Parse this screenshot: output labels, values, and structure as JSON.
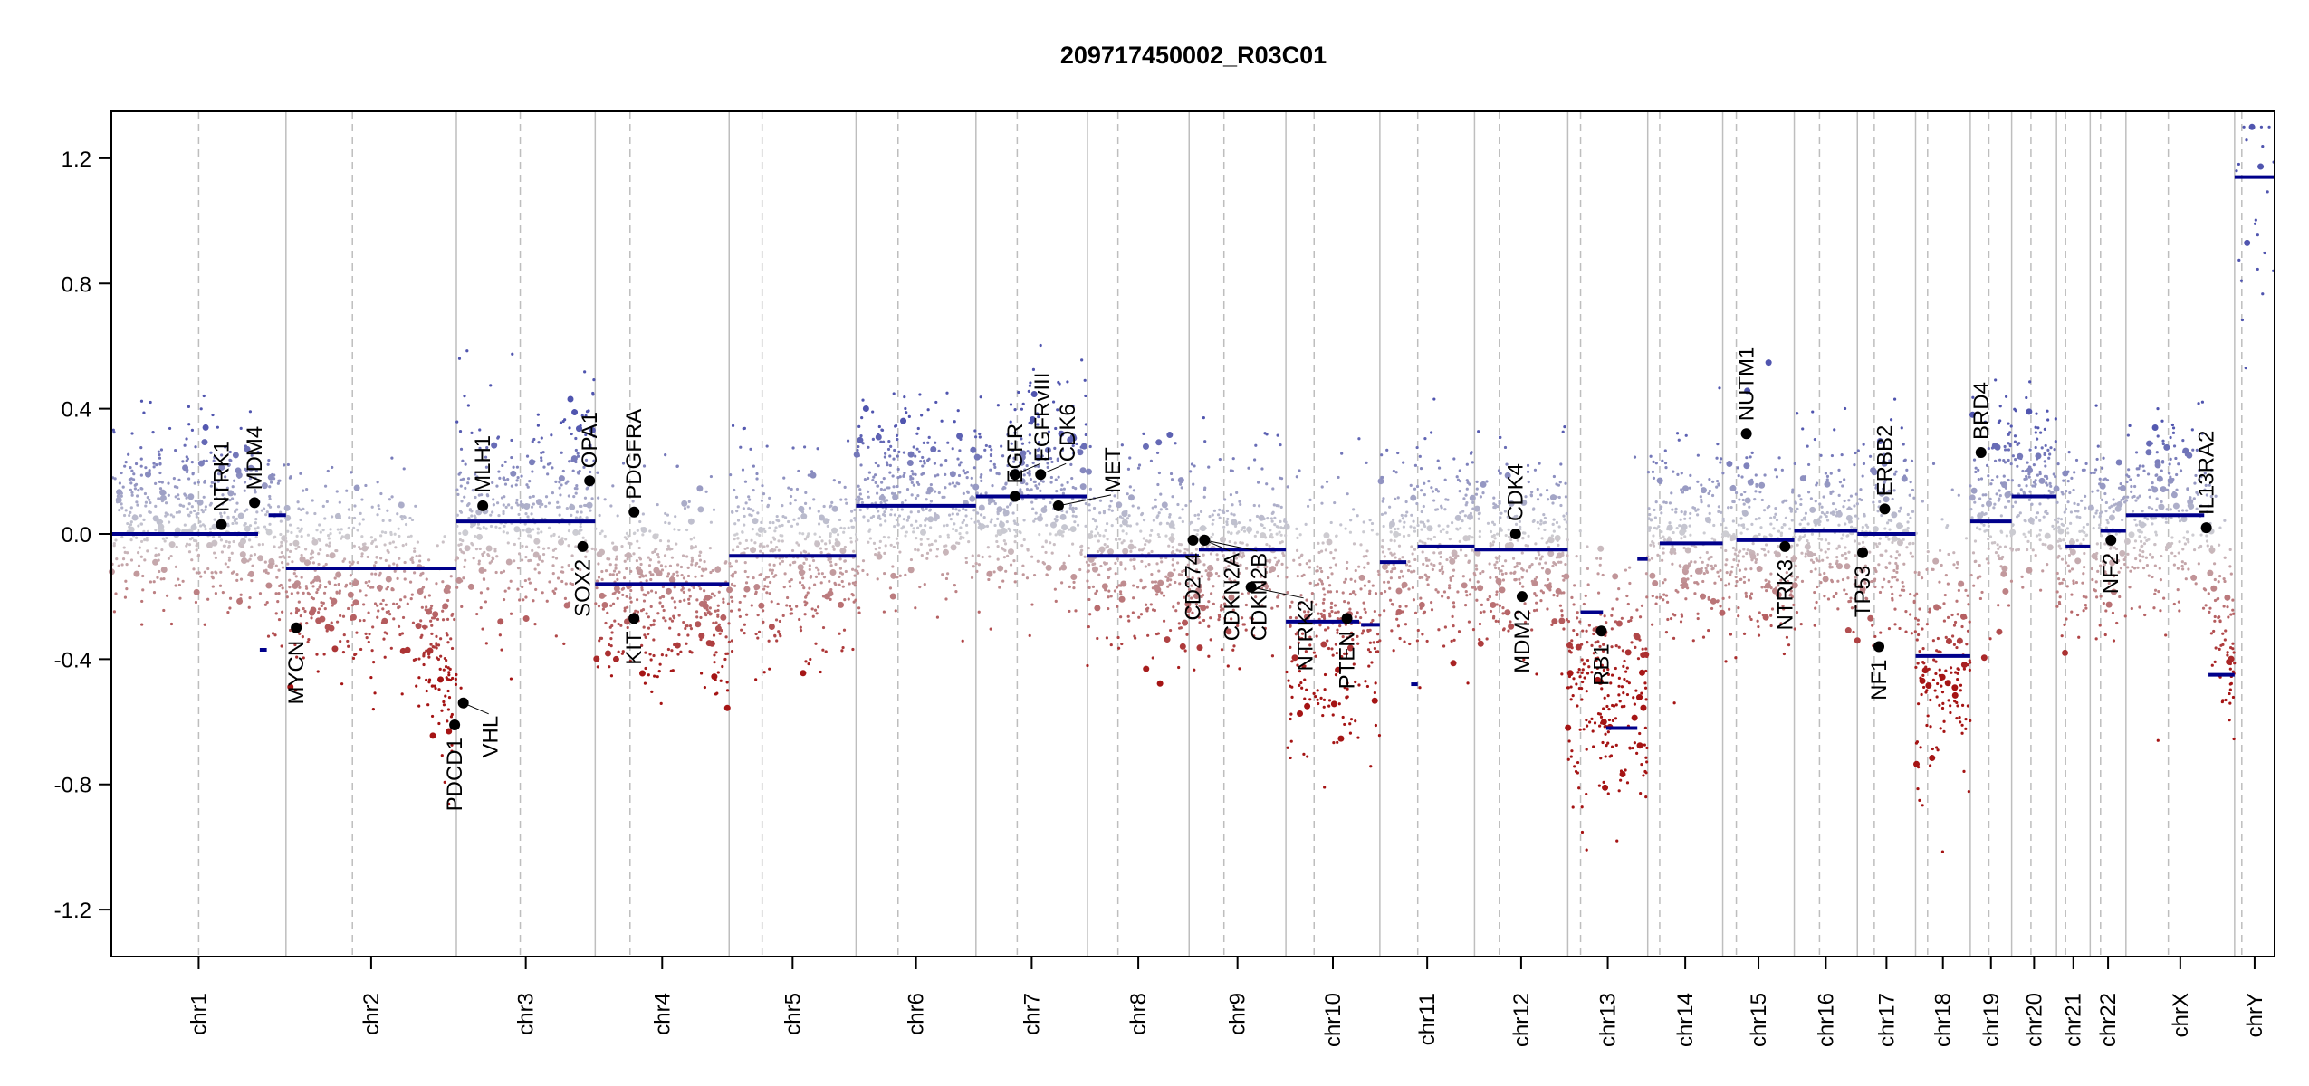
{
  "chart_data": {
    "type": "scatter",
    "title": "209717450002_R03C01",
    "xlabel": "",
    "ylabel": "",
    "ylim": [
      -1.35,
      1.35
    ],
    "yticks": [
      -1.2,
      -0.8,
      -0.4,
      0.0,
      0.4,
      0.8,
      1.2
    ],
    "ytick_labels": [
      "-1.2",
      "-0.8",
      "-0.4",
      "0.0",
      "0.4",
      "0.8",
      "1.2"
    ],
    "grid": false,
    "colors": {
      "segment": "#00008B",
      "gain": "#5A5FB0",
      "neutral": "#C8C8C8",
      "loss": "#A01010",
      "gene": "#000000",
      "separator": "#BEBEBE"
    },
    "chromosomes": [
      {
        "name": "chr1",
        "length": 249,
        "centromere": 0.5
      },
      {
        "name": "chr2",
        "length": 243,
        "centromere": 0.39
      },
      {
        "name": "chr3",
        "length": 198,
        "centromere": 0.46
      },
      {
        "name": "chr4",
        "length": 191,
        "centromere": 0.26
      },
      {
        "name": "chr5",
        "length": 181,
        "centromere": 0.26
      },
      {
        "name": "chr6",
        "length": 171,
        "centromere": 0.35
      },
      {
        "name": "chr7",
        "length": 159,
        "centromere": 0.37
      },
      {
        "name": "chr8",
        "length": 145,
        "centromere": 0.3
      },
      {
        "name": "chr9",
        "length": 138,
        "centromere": 0.36
      },
      {
        "name": "chr10",
        "length": 134,
        "centromere": 0.3
      },
      {
        "name": "chr11",
        "length": 135,
        "centromere": 0.4
      },
      {
        "name": "chr12",
        "length": 133,
        "centromere": 0.27
      },
      {
        "name": "chr13",
        "length": 114,
        "centromere": 0.16
      },
      {
        "name": "chr14",
        "length": 107,
        "centromere": 0.16
      },
      {
        "name": "chr15",
        "length": 102,
        "centromere": 0.19
      },
      {
        "name": "chr16",
        "length": 90,
        "centromere": 0.4
      },
      {
        "name": "chr17",
        "length": 83,
        "centromere": 0.29
      },
      {
        "name": "chr18",
        "length": 78,
        "centromere": 0.22
      },
      {
        "name": "chr19",
        "length": 59,
        "centromere": 0.45
      },
      {
        "name": "chr20",
        "length": 64,
        "centromere": 0.43
      },
      {
        "name": "chr21",
        "length": 48,
        "centromere": 0.27
      },
      {
        "name": "chr22",
        "length": 51,
        "centromere": 0.29
      },
      {
        "name": "chrX",
        "length": 155,
        "centromere": 0.39
      },
      {
        "name": "chrY",
        "length": 57,
        "centromere": 0.18
      }
    ],
    "segments": [
      {
        "chr": "chr1",
        "start": 0.0,
        "end": 0.84,
        "value": 0.0
      },
      {
        "chr": "chr1",
        "start": 0.9,
        "end": 1.0,
        "value": 0.06
      },
      {
        "chr": "chr1",
        "start": 0.85,
        "end": 0.89,
        "value": -0.37
      },
      {
        "chr": "chr2",
        "start": 0.0,
        "end": 1.0,
        "value": -0.11
      },
      {
        "chr": "chr3",
        "start": 0.0,
        "end": 1.0,
        "value": 0.04
      },
      {
        "chr": "chr4",
        "start": 0.0,
        "end": 1.0,
        "value": -0.16
      },
      {
        "chr": "chr5",
        "start": 0.0,
        "end": 1.0,
        "value": -0.07
      },
      {
        "chr": "chr6",
        "start": 0.0,
        "end": 1.0,
        "value": 0.09
      },
      {
        "chr": "chr7",
        "start": 0.0,
        "end": 1.0,
        "value": 0.12
      },
      {
        "chr": "chr8",
        "start": 0.0,
        "end": 1.0,
        "value": -0.07
      },
      {
        "chr": "chr9",
        "start": 0.0,
        "end": 0.1,
        "value": -0.07
      },
      {
        "chr": "chr9",
        "start": 0.1,
        "end": 1.0,
        "value": -0.05
      },
      {
        "chr": "chr10",
        "start": 0.0,
        "end": 0.78,
        "value": -0.28
      },
      {
        "chr": "chr10",
        "start": 0.8,
        "end": 1.0,
        "value": -0.29
      },
      {
        "chr": "chr11",
        "start": 0.0,
        "end": 0.28,
        "value": -0.09
      },
      {
        "chr": "chr11",
        "start": 0.33,
        "end": 0.4,
        "value": -0.48
      },
      {
        "chr": "chr11",
        "start": 0.4,
        "end": 1.0,
        "value": -0.04
      },
      {
        "chr": "chr12",
        "start": 0.0,
        "end": 1.0,
        "value": -0.05
      },
      {
        "chr": "chr13",
        "start": 0.16,
        "end": 0.44,
        "value": -0.25
      },
      {
        "chr": "chr13",
        "start": 0.48,
        "end": 0.87,
        "value": -0.62
      },
      {
        "chr": "chr13",
        "start": 0.87,
        "end": 1.0,
        "value": -0.08
      },
      {
        "chr": "chr14",
        "start": 0.16,
        "end": 1.0,
        "value": -0.03
      },
      {
        "chr": "chr15",
        "start": 0.19,
        "end": 1.0,
        "value": -0.02
      },
      {
        "chr": "chr16",
        "start": 0.0,
        "end": 1.0,
        "value": 0.01
      },
      {
        "chr": "chr17",
        "start": 0.0,
        "end": 1.0,
        "value": 0.0
      },
      {
        "chr": "chr18",
        "start": 0.0,
        "end": 1.0,
        "value": -0.39
      },
      {
        "chr": "chr19",
        "start": 0.0,
        "end": 1.0,
        "value": 0.04
      },
      {
        "chr": "chr20",
        "start": 0.0,
        "end": 1.0,
        "value": 0.12
      },
      {
        "chr": "chr21",
        "start": 0.27,
        "end": 1.0,
        "value": -0.04
      },
      {
        "chr": "chr22",
        "start": 0.29,
        "end": 1.0,
        "value": 0.01
      },
      {
        "chr": "chrX",
        "start": 0.0,
        "end": 0.72,
        "value": 0.06
      },
      {
        "chr": "chrX",
        "start": 0.76,
        "end": 1.0,
        "value": -0.45
      },
      {
        "chr": "chrY",
        "start": 0.0,
        "end": 1.0,
        "value": 1.14
      }
    ],
    "profile": [
      {
        "chr": "chr1",
        "mean": 0.05,
        "sd": 0.14,
        "tail": -0.1
      },
      {
        "chr": "chr2",
        "mean": -0.12,
        "sd": 0.16,
        "tail": -0.35
      },
      {
        "chr": "chr3",
        "mean": 0.04,
        "sd": 0.16,
        "tail": 0.1
      },
      {
        "chr": "chr4",
        "mean": -0.16,
        "sd": 0.15,
        "tail": -0.15
      },
      {
        "chr": "chr5",
        "mean": -0.07,
        "sd": 0.14,
        "tail": 0.0
      },
      {
        "chr": "chr6",
        "mean": 0.09,
        "sd": 0.15,
        "tail": 0.05
      },
      {
        "chr": "chr7",
        "mean": 0.12,
        "sd": 0.16,
        "tail": 0.0
      },
      {
        "chr": "chr8",
        "mean": -0.07,
        "sd": 0.14,
        "tail": 0.0
      },
      {
        "chr": "chr9",
        "mean": -0.05,
        "sd": 0.15,
        "tail": 0.0
      },
      {
        "chr": "chr10",
        "mean": -0.28,
        "sd": 0.2,
        "tail": 0.0
      },
      {
        "chr": "chr11",
        "mean": -0.04,
        "sd": 0.15,
        "tail": 0.0
      },
      {
        "chr": "chr12",
        "mean": -0.05,
        "sd": 0.15,
        "tail": 0.0
      },
      {
        "chr": "chr13",
        "mean": -0.45,
        "sd": 0.2,
        "tail": -0.15
      },
      {
        "chr": "chr14",
        "mean": -0.03,
        "sd": 0.15,
        "tail": 0.0
      },
      {
        "chr": "chr15",
        "mean": -0.02,
        "sd": 0.15,
        "tail": 0.0
      },
      {
        "chr": "chr16",
        "mean": 0.01,
        "sd": 0.14,
        "tail": 0.0
      },
      {
        "chr": "chr17",
        "mean": 0.0,
        "sd": 0.15,
        "tail": 0.0
      },
      {
        "chr": "chr18",
        "mean": -0.39,
        "sd": 0.22,
        "tail": 0.0
      },
      {
        "chr": "chr19",
        "mean": 0.04,
        "sd": 0.16,
        "tail": 0.1
      },
      {
        "chr": "chr20",
        "mean": 0.12,
        "sd": 0.14,
        "tail": 0.0
      },
      {
        "chr": "chr21",
        "mean": -0.04,
        "sd": 0.14,
        "tail": 0.0
      },
      {
        "chr": "chr22",
        "mean": 0.01,
        "sd": 0.15,
        "tail": 0.0
      },
      {
        "chr": "chrX",
        "mean": 0.06,
        "sd": 0.15,
        "tail": -0.5
      },
      {
        "chr": "chrY",
        "mean": 1.14,
        "sd": 0.3,
        "tail": 0.0
      }
    ],
    "genes": [
      {
        "name": "NTRK1",
        "chr": "chr1",
        "pos": 0.63,
        "value": 0.03,
        "label_side": "up"
      },
      {
        "name": "MDM4",
        "chr": "chr1",
        "pos": 0.82,
        "value": 0.1,
        "label_side": "up"
      },
      {
        "name": "MYCN",
        "chr": "chr2",
        "pos": 0.06,
        "value": -0.3,
        "label_side": "down"
      },
      {
        "name": "PDCD1",
        "chr": "chr2",
        "pos": 0.99,
        "value": -0.61,
        "label_side": "down"
      },
      {
        "name": "VHL",
        "chr": "chr3",
        "pos": 0.05,
        "value": -0.54,
        "label_side": "down"
      },
      {
        "name": "MLH1",
        "chr": "chr3",
        "pos": 0.19,
        "value": 0.09,
        "label_side": "up"
      },
      {
        "name": "SOX2",
        "chr": "chr3",
        "pos": 0.91,
        "value": -0.04,
        "label_side": "down"
      },
      {
        "name": "OPA1",
        "chr": "chr3",
        "pos": 0.96,
        "value": 0.17,
        "label_side": "up"
      },
      {
        "name": "PDGFRA",
        "chr": "chr4",
        "pos": 0.29,
        "value": 0.07,
        "label_side": "up"
      },
      {
        "name": "KIT",
        "chr": "chr4",
        "pos": 0.29,
        "value": -0.27,
        "label_side": "down"
      },
      {
        "name": "EGFR",
        "chr": "chr7",
        "pos": 0.35,
        "value": 0.12,
        "label_side": "up"
      },
      {
        "name": "EGFRvIII",
        "chr": "chr7",
        "pos": 0.35,
        "value": 0.19,
        "label_side": "up"
      },
      {
        "name": "CDK6",
        "chr": "chr7",
        "pos": 0.58,
        "value": 0.19,
        "label_side": "up"
      },
      {
        "name": "MET",
        "chr": "chr7",
        "pos": 0.74,
        "value": 0.09,
        "label_side": "up"
      },
      {
        "name": "CD274",
        "chr": "chr9",
        "pos": 0.04,
        "value": -0.02,
        "label_side": "down"
      },
      {
        "name": "CDKN2A",
        "chr": "chr9",
        "pos": 0.16,
        "value": -0.02,
        "label_side": "down"
      },
      {
        "name": "CDKN2B",
        "chr": "chr9",
        "pos": 0.16,
        "value": -0.02,
        "label_side": "down"
      },
      {
        "name": "NTRK2",
        "chr": "chr9",
        "pos": 0.64,
        "value": -0.17,
        "label_side": "down"
      },
      {
        "name": "PTEN",
        "chr": "chr10",
        "pos": 0.65,
        "value": -0.27,
        "label_side": "down"
      },
      {
        "name": "CDK4",
        "chr": "chr12",
        "pos": 0.44,
        "value": 0.0,
        "label_side": "up"
      },
      {
        "name": "MDM2",
        "chr": "chr12",
        "pos": 0.51,
        "value": -0.2,
        "label_side": "down"
      },
      {
        "name": "RB1",
        "chr": "chr13",
        "pos": 0.42,
        "value": -0.31,
        "label_side": "down"
      },
      {
        "name": "NUTM1",
        "chr": "chr15",
        "pos": 0.33,
        "value": 0.32,
        "label_side": "up"
      },
      {
        "name": "NTRK3",
        "chr": "chr15",
        "pos": 0.87,
        "value": -0.04,
        "label_side": "down"
      },
      {
        "name": "TP53",
        "chr": "chr17",
        "pos": 0.09,
        "value": -0.06,
        "label_side": "down"
      },
      {
        "name": "NF1",
        "chr": "chr17",
        "pos": 0.37,
        "value": -0.36,
        "label_side": "down"
      },
      {
        "name": "ERBB2",
        "chr": "chr17",
        "pos": 0.47,
        "value": 0.08,
        "label_side": "up"
      },
      {
        "name": "BRD4",
        "chr": "chr19",
        "pos": 0.26,
        "value": 0.26,
        "label_side": "up"
      },
      {
        "name": "NF2",
        "chr": "chr22",
        "pos": 0.58,
        "value": -0.02,
        "label_side": "down"
      },
      {
        "name": "IL13RA2",
        "chr": "chrX",
        "pos": 0.74,
        "value": 0.02,
        "label_side": "up"
      }
    ]
  }
}
